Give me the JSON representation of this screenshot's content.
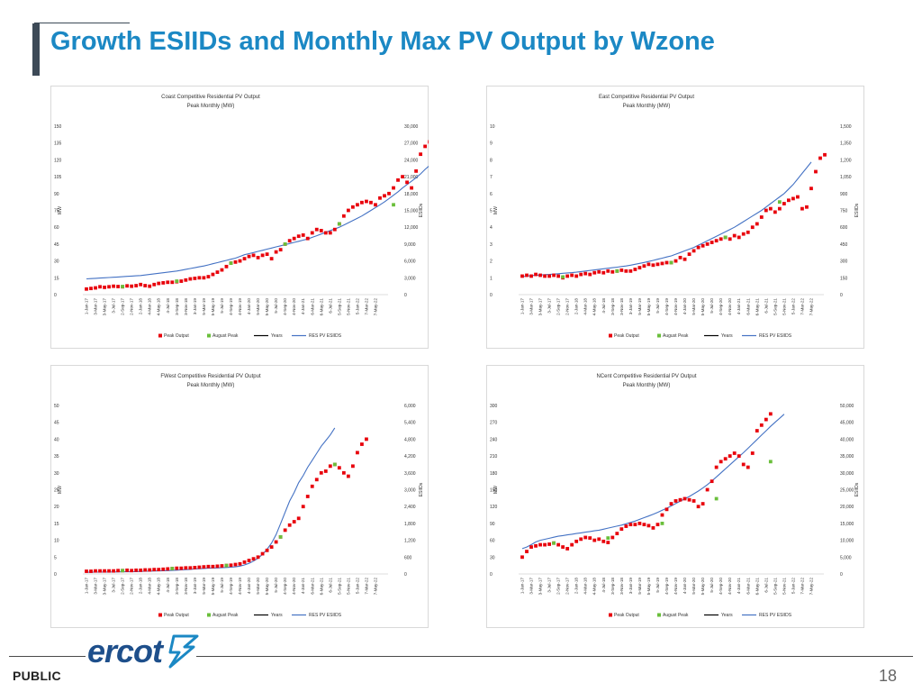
{
  "page": {
    "title": "Growth ESIIDs and Monthly Max PV Output by Wzone",
    "footer_label": "PUBLIC",
    "page_number": "18",
    "logo_text": "ercot"
  },
  "colors": {
    "title": "#1b88c4",
    "peak": "#e8000b",
    "august": "#6abf3b",
    "years": "#000000",
    "esiids": "#4472c4"
  },
  "chart_data": [
    {
      "id": "coast",
      "type": "scatter+line",
      "title": "Coast Competitive Residential PV Output",
      "subtitle": "Peak Monthly (MW)",
      "ylabel": "MW",
      "y2label": "ESIIDs",
      "ylim": [
        0,
        150
      ],
      "yticks": [
        0,
        15,
        30,
        45,
        60,
        75,
        90,
        105,
        120,
        135,
        150
      ],
      "y2lim": [
        0,
        30000
      ],
      "y2ticks": [
        "0",
        "3,000",
        "6,000",
        "9,000",
        "12,000",
        "15,000",
        "18,000",
        "21,000",
        "24,000",
        "27,000",
        "30,000"
      ],
      "legend": [
        "Peak Output",
        "August Peak",
        "Years",
        "RES PV ESIIDS"
      ],
      "peak": [
        5,
        5.5,
        6,
        7,
        6.5,
        7,
        7.5,
        7.2,
        7,
        7.8,
        7.5,
        8,
        9,
        8,
        7.5,
        9,
        10,
        10.5,
        11,
        11,
        11.5,
        12,
        13,
        14,
        14.5,
        15,
        15,
        16,
        18,
        20,
        22,
        25,
        28,
        29,
        30,
        32,
        34,
        35,
        33,
        35,
        36,
        32,
        38,
        40,
        45,
        48,
        50,
        52,
        53,
        50,
        55,
        58,
        57,
        55,
        55,
        58,
        63,
        70,
        75,
        78,
        80,
        82,
        83,
        82,
        80,
        86,
        88,
        90,
        95,
        102,
        105,
        100,
        95,
        110,
        125,
        132,
        136,
        138
      ],
      "august": [
        {
          "i": 8,
          "v": 7.2
        },
        {
          "i": 20,
          "v": 12
        },
        {
          "i": 32,
          "v": 28
        },
        {
          "i": 44,
          "v": 45
        },
        {
          "i": 56,
          "v": 63
        },
        {
          "i": 68,
          "v": 80
        }
      ],
      "esiids": [
        2800,
        2850,
        2900,
        2950,
        3000,
        3050,
        3100,
        3150,
        3200,
        3250,
        3300,
        3350,
        3400,
        3500,
        3600,
        3700,
        3800,
        3900,
        4000,
        4100,
        4200,
        4350,
        4500,
        4650,
        4800,
        4950,
        5100,
        5300,
        5500,
        5700,
        5900,
        6100,
        6300,
        6500,
        6800,
        7100,
        7300,
        7500,
        7700,
        7900,
        8100,
        8300,
        8500,
        8700,
        8900,
        9100,
        9300,
        9500,
        9700,
        9900,
        10200,
        10500,
        10800,
        11100,
        11400,
        11700,
        12000,
        12400,
        12800,
        13200,
        13600,
        14000,
        14500,
        15000,
        15500,
        16000,
        16500,
        17100,
        17700,
        18300,
        19000,
        19600,
        20200,
        20800,
        21500,
        22300,
        23000
      ],
      "xlabels": [
        "1-Jan-17",
        "3-Mar-17",
        "3-May-17",
        "3-Jul-17",
        "2-Sep-17",
        "2-Nov-17",
        "2-Jan-18",
        "4-Mar-18",
        "4-May-18",
        "4-Jul-18",
        "3-Sep-18",
        "3-Nov-18",
        "3-Jan-19",
        "5-Mar-19",
        "5-May-19",
        "5-Jul-19",
        "4-Sep-19",
        "4-Nov-19",
        "4-Jan-20",
        "5-Mar-20",
        "5-May-20",
        "5-Jul-20",
        "4-Sep-20",
        "4-Nov-20",
        "4-Jan-21",
        "6-Mar-21",
        "6-May-21",
        "6-Jul-21",
        "5-Sep-21",
        "5-Nov-21",
        "5-Jan-22",
        "7-Mar-22",
        "7-May-22"
      ]
    },
    {
      "id": "east",
      "type": "scatter+line",
      "title": "East Competitive Residential PV Output",
      "subtitle": "Peak Monthly (MW)",
      "ylabel": "MW",
      "y2label": "ESIIDs",
      "ylim": [
        0,
        10
      ],
      "yticks": [
        0,
        1,
        2,
        3,
        4,
        5,
        6,
        7,
        8,
        9,
        10
      ],
      "y2lim": [
        0,
        1500
      ],
      "y2ticks": [
        "0",
        "150",
        "300",
        "450",
        "600",
        "750",
        "900",
        "1,050",
        "1,200",
        "1,350",
        "1,500"
      ],
      "legend": [
        "Peak Output",
        "August Peak",
        "Years",
        "RES PV ESIIDS"
      ],
      "peak": [
        1.1,
        1.15,
        1.1,
        1.2,
        1.15,
        1.1,
        1.1,
        1.15,
        1.1,
        1.0,
        1.1,
        1.15,
        1.1,
        1.2,
        1.25,
        1.2,
        1.3,
        1.35,
        1.3,
        1.4,
        1.35,
        1.4,
        1.45,
        1.4,
        1.4,
        1.5,
        1.6,
        1.7,
        1.8,
        1.75,
        1.8,
        1.85,
        1.9,
        1.9,
        2.0,
        2.2,
        2.1,
        2.4,
        2.6,
        2.8,
        2.9,
        3.0,
        3.1,
        3.2,
        3.3,
        3.4,
        3.3,
        3.5,
        3.4,
        3.6,
        3.7,
        4.0,
        4.2,
        4.6,
        5.0,
        5.1,
        4.9,
        5.1,
        5.4,
        5.6,
        5.7,
        5.8,
        5.1,
        5.2,
        6.3,
        7.3,
        8.1,
        8.3
      ],
      "august": [
        {
          "i": 9,
          "v": 1.05
        },
        {
          "i": 21,
          "v": 1.4
        },
        {
          "i": 33,
          "v": 1.9
        },
        {
          "i": 45,
          "v": 3.4
        },
        {
          "i": 57,
          "v": 5.5
        }
      ],
      "esiids": [
        160,
        165,
        170,
        172,
        175,
        178,
        180,
        183,
        186,
        190,
        193,
        196,
        200,
        205,
        210,
        215,
        220,
        225,
        230,
        235,
        240,
        245,
        250,
        255,
        262,
        270,
        278,
        286,
        295,
        305,
        315,
        325,
        335,
        345,
        360,
        375,
        390,
        405,
        420,
        440,
        460,
        480,
        500,
        520,
        540,
        560,
        580,
        600,
        625,
        650,
        675,
        700,
        725,
        750,
        780,
        810,
        840,
        870,
        900,
        940,
        980,
        1030,
        1080,
        1130,
        1180
      ],
      "xlabels": [
        "1-Jan-17",
        "3-Mar-17",
        "3-May-17",
        "3-Jul-17",
        "2-Sep-17",
        "2-Nov-17",
        "2-Jan-18",
        "4-Mar-18",
        "4-May-18",
        "4-Jul-18",
        "3-Sep-18",
        "3-Nov-18",
        "3-Jan-19",
        "5-Mar-19",
        "5-May-19",
        "5-Jul-19",
        "4-Sep-19",
        "4-Nov-19",
        "4-Jan-20",
        "5-Mar-20",
        "5-May-20",
        "5-Jul-20",
        "4-Sep-20",
        "4-Nov-20",
        "4-Jan-21",
        "6-Mar-21",
        "6-May-21",
        "6-Jul-21",
        "5-Sep-21",
        "5-Nov-21",
        "5-Jan-22",
        "7-Mar-22",
        "7-May-22"
      ]
    },
    {
      "id": "fwest",
      "type": "scatter+line",
      "title": "FWest Competitive Residential PV Output",
      "subtitle": "Peak Monthly (MW)",
      "ylabel": "MW",
      "y2label": "ESIIDs",
      "ylim": [
        0,
        50
      ],
      "yticks": [
        0,
        5,
        10,
        15,
        20,
        25,
        30,
        35,
        40,
        45,
        50
      ],
      "y2lim": [
        0,
        6000
      ],
      "y2ticks": [
        "0",
        "600",
        "1,200",
        "1,800",
        "2,400",
        "3,000",
        "3,600",
        "4,200",
        "4,800",
        "5,400",
        "6,000"
      ],
      "legend": [
        "Peak Output",
        "August Peak",
        "Years",
        "RES PV ESIIDS"
      ],
      "peak": [
        0.8,
        0.8,
        0.9,
        0.9,
        0.9,
        0.9,
        0.9,
        1.0,
        1.0,
        1.1,
        1.0,
        1.1,
        1.1,
        1.2,
        1.2,
        1.3,
        1.3,
        1.4,
        1.5,
        1.6,
        1.7,
        1.7,
        1.8,
        1.8,
        1.9,
        2.0,
        2.1,
        2.2,
        2.2,
        2.3,
        2.4,
        2.5,
        2.6,
        2.8,
        3.0,
        3.5,
        4.0,
        4.5,
        5.0,
        6.0,
        7.0,
        8.0,
        9.5,
        11.0,
        13.0,
        14.5,
        15.5,
        16.5,
        20.0,
        23.0,
        26.0,
        28.0,
        30.0,
        30.5,
        32.0,
        32.5,
        31.5,
        30.0,
        29.0,
        32.0,
        36.0,
        38.5,
        40.0
      ],
      "august": [
        {
          "i": 8,
          "v": 1.0
        },
        {
          "i": 19,
          "v": 1.6
        },
        {
          "i": 31,
          "v": 2.5
        },
        {
          "i": 43,
          "v": 11.0
        },
        {
          "i": 55,
          "v": 32.5
        }
      ],
      "esiids": [
        60,
        62,
        64,
        66,
        68,
        70,
        72,
        74,
        76,
        78,
        80,
        85,
        90,
        95,
        100,
        105,
        110,
        115,
        120,
        125,
        135,
        145,
        155,
        165,
        175,
        185,
        195,
        205,
        210,
        215,
        220,
        230,
        240,
        255,
        280,
        320,
        380,
        460,
        560,
        700,
        880,
        1100,
        1400,
        1800,
        2200,
        2600,
        2900,
        3250,
        3500,
        3800,
        4050,
        4300,
        4550,
        4750,
        4950,
        5200
      ],
      "xlabels": [
        "1-Jan-17",
        "3-Mar-17",
        "3-May-17",
        "3-Jul-17",
        "2-Sep-17",
        "2-Nov-17",
        "2-Jan-18",
        "4-Mar-18",
        "4-May-18",
        "4-Jul-18",
        "3-Sep-18",
        "3-Nov-18",
        "3-Jan-19",
        "5-Mar-19",
        "5-May-19",
        "5-Jul-19",
        "4-Sep-19",
        "4-Nov-19",
        "4-Jan-20",
        "5-Mar-20",
        "5-May-20",
        "5-Jul-20",
        "4-Sep-20",
        "4-Nov-20",
        "4-Jan-21",
        "6-Mar-21",
        "6-May-21",
        "6-Jul-21",
        "5-Sep-21",
        "5-Nov-21",
        "5-Jan-22",
        "7-Mar-22",
        "7-May-22"
      ]
    },
    {
      "id": "ncent",
      "type": "scatter+line",
      "title": "NCent Competitive Residential PV Output",
      "subtitle": "Peak Monthly (MW)",
      "ylabel": "MW",
      "y2label": "ESIIDs",
      "ylim": [
        0,
        300
      ],
      "yticks": [
        0,
        30,
        60,
        90,
        120,
        150,
        180,
        210,
        240,
        270,
        300
      ],
      "y2lim": [
        0,
        50000
      ],
      "y2ticks": [
        "0",
        "5,000",
        "10,000",
        "15,000",
        "20,000",
        "25,000",
        "30,000",
        "35,000",
        "40,000",
        "45,000",
        "50,000"
      ],
      "legend": [
        "Peak Output",
        "August Peak",
        "Years",
        "RES PV ESIIDS"
      ],
      "peak": [
        30,
        40,
        48,
        50,
        52,
        52,
        53,
        55,
        52,
        48,
        45,
        52,
        58,
        62,
        65,
        64,
        60,
        62,
        58,
        56,
        65,
        72,
        80,
        85,
        88,
        88,
        90,
        88,
        86,
        82,
        88,
        105,
        115,
        125,
        130,
        132,
        134,
        132,
        130,
        120,
        125,
        150,
        165,
        190,
        200,
        205,
        210,
        215,
        210,
        195,
        190,
        215,
        255,
        265,
        275,
        285
      ],
      "august": [
        {
          "i": 7,
          "v": 55
        },
        {
          "i": 19,
          "v": 64
        },
        {
          "i": 31,
          "v": 90
        },
        {
          "i": 43,
          "v": 134
        },
        {
          "i": 55,
          "v": 200
        }
      ],
      "esiids": [
        7500,
        8000,
        8700,
        9500,
        10000,
        10300,
        10600,
        10900,
        11200,
        11400,
        11600,
        11800,
        12000,
        12200,
        12400,
        12600,
        12800,
        13000,
        13300,
        13600,
        13900,
        14200,
        14500,
        14900,
        15300,
        15700,
        16200,
        16700,
        17200,
        17700,
        18300,
        18900,
        19500,
        20200,
        20900,
        21600,
        22300,
        23000,
        23800,
        24600,
        25500,
        26500,
        27600,
        28800,
        30000,
        31200,
        32400,
        33600,
        34800,
        36000,
        37300,
        38600,
        39900,
        41200,
        42500,
        43800,
        45000,
        46200,
        47400
      ]
    }
  ]
}
